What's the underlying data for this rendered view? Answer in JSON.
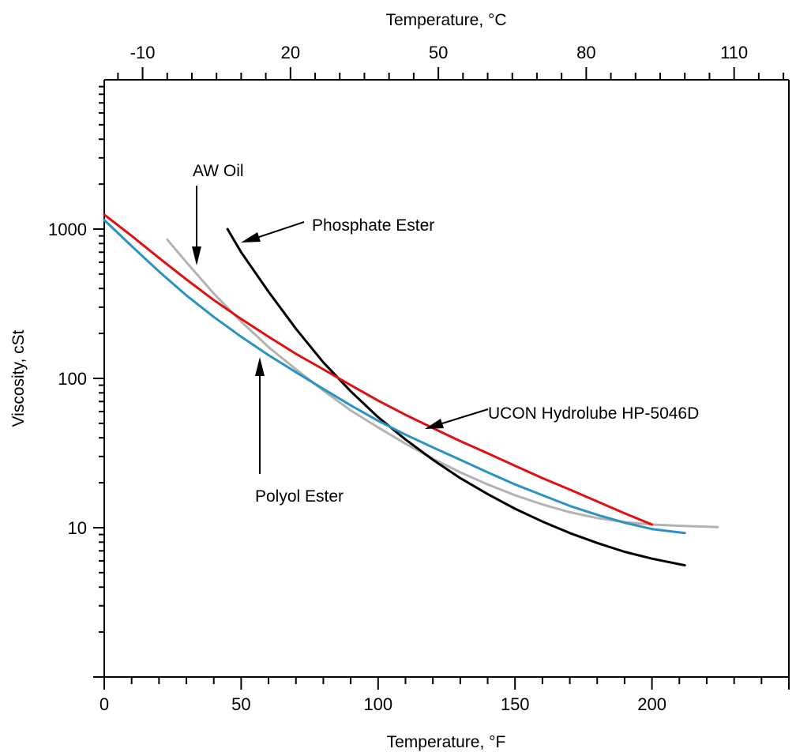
{
  "chart_data": {
    "type": "line",
    "xlabel": "Temperature, °F",
    "x2label": "Temperature, °C",
    "ylabel": "Viscosity, cSt",
    "xlim": [
      0,
      250
    ],
    "x2lim": [
      -17.78,
      121.11
    ],
    "ylim": [
      1,
      10000
    ],
    "yscale": "log",
    "x_ticks": [
      "0",
      "50",
      "100",
      "150",
      "200"
    ],
    "x2_ticks": [
      "-10",
      "20",
      "50",
      "80",
      "110"
    ],
    "y_ticks": [
      "10",
      "100",
      "1000"
    ],
    "grid": false,
    "series": [
      {
        "name": "AW Oil",
        "color": "#b3b3b3",
        "x": [
          23,
          30,
          40,
          50,
          60,
          70,
          80,
          90,
          100,
          110,
          120,
          130,
          140,
          150,
          160,
          170,
          180,
          190,
          200,
          210,
          224
        ],
        "y": [
          850,
          600,
          370,
          240,
          162,
          115,
          83,
          61,
          47,
          36.5,
          29,
          23.5,
          19.5,
          16.5,
          14.3,
          12.7,
          11.6,
          10.9,
          10.5,
          10.3,
          10.1
        ]
      },
      {
        "name": "Phosphate Ester",
        "color": "#000000",
        "x": [
          45,
          50,
          60,
          70,
          80,
          90,
          100,
          110,
          120,
          130,
          140,
          150,
          160,
          170,
          180,
          190,
          200,
          212
        ],
        "y": [
          1000,
          700,
          380,
          215,
          128,
          82,
          55,
          39,
          28.5,
          21.5,
          16.8,
          13.4,
          11.0,
          9.2,
          7.9,
          6.9,
          6.2,
          5.6
        ]
      },
      {
        "name": "UCON Hydrolube HP-5046D",
        "color": "#e01010",
        "x": [
          0,
          10,
          20,
          30,
          40,
          50,
          60,
          70,
          80,
          90,
          100,
          110,
          120,
          130,
          140,
          150,
          160,
          170,
          180,
          190,
          200
        ],
        "y": [
          1250,
          900,
          640,
          460,
          335,
          250,
          190,
          146,
          115,
          90,
          71,
          57,
          46.5,
          38,
          31.5,
          26,
          21.5,
          18,
          15,
          12.5,
          10.5
        ]
      },
      {
        "name": "Polyol Ester",
        "color": "#2a93c2",
        "x": [
          0,
          10,
          20,
          30,
          40,
          50,
          60,
          70,
          80,
          90,
          100,
          110,
          120,
          130,
          140,
          150,
          160,
          170,
          180,
          190,
          200,
          212
        ],
        "y": [
          1150,
          770,
          520,
          360,
          258,
          190,
          143,
          110,
          85,
          66,
          52,
          42,
          34.5,
          28.5,
          23.5,
          19.5,
          16.5,
          14,
          12.2,
          10.8,
          9.8,
          9.2
        ]
      }
    ],
    "annotations": [
      {
        "text": "AW Oil"
      },
      {
        "text": "Phosphate Ester"
      },
      {
        "text": "UCON Hydrolube HP-5046D"
      },
      {
        "text": "Polyol Ester"
      }
    ]
  }
}
